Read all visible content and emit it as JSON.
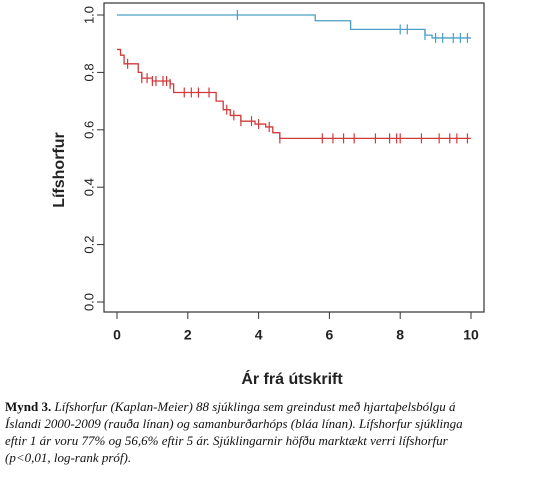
{
  "chart_data": {
    "type": "kaplan-meier",
    "xlabel": "Ár frá útskrift",
    "ylabel": "Lífshorfur",
    "xlim": [
      0,
      10
    ],
    "xticks": [
      0,
      2,
      4,
      6,
      8,
      10
    ],
    "ylim": [
      0,
      1
    ],
    "yticks": [
      {
        "value": 0,
        "label": "0.0"
      },
      0.2,
      0.4,
      0.6,
      0.8,
      {
        "value": 1,
        "label": "1.0"
      }
    ],
    "series": [
      {
        "color": "#4a9fc8",
        "x": [
          0,
          5.6,
          6.6,
          8.7,
          8.9,
          10
        ],
        "values": [
          1,
          0.98,
          0.95,
          0.93,
          0.92,
          0.92
        ],
        "censor_x": [
          3.4,
          8.0,
          8.2,
          8.7,
          9.0,
          9.2,
          9.5,
          9.7,
          9.9
        ]
      },
      {
        "color": "#d03a3a",
        "x": [
          0,
          0.1,
          0.2,
          0.6,
          0.7,
          1.0,
          1.5,
          1.6,
          2.8,
          3.0,
          3.2,
          3.5,
          3.9,
          4.2,
          4.4,
          4.6,
          10
        ],
        "values": [
          0.88,
          0.86,
          0.83,
          0.8,
          0.78,
          0.77,
          0.76,
          0.73,
          0.7,
          0.67,
          0.65,
          0.63,
          0.62,
          0.61,
          0.59,
          0.57,
          0.57
        ],
        "censor_x": [
          0.3,
          0.7,
          0.85,
          1.0,
          1.1,
          1.3,
          1.4,
          1.5,
          1.9,
          2.1,
          2.3,
          2.6,
          3.1,
          3.3,
          3.5,
          3.8,
          4.0,
          4.3,
          4.6,
          5.8,
          6.1,
          6.4,
          6.7,
          7.3,
          7.7,
          7.9,
          8.0,
          8.6,
          9.1,
          9.4,
          9.6,
          9.9
        ]
      }
    ]
  },
  "caption": {
    "label": "Mynd 3.",
    "lines": [
      "Lífshorfur (Kaplan-Meier) 88 sjúklinga sem greindust með hjartaþelsbólgu á",
      "Íslandi 2000-2009 (rauða línan) og samanburðarhóps (bláa línan). Lífshorfur sjúklinga",
      "eftir 1 ár voru 77% og 56,6% eftir 5 ár. Sjúklingarnir höfðu marktækt verri lífshorfur",
      "(p<0,01, log-rank próf)."
    ]
  }
}
